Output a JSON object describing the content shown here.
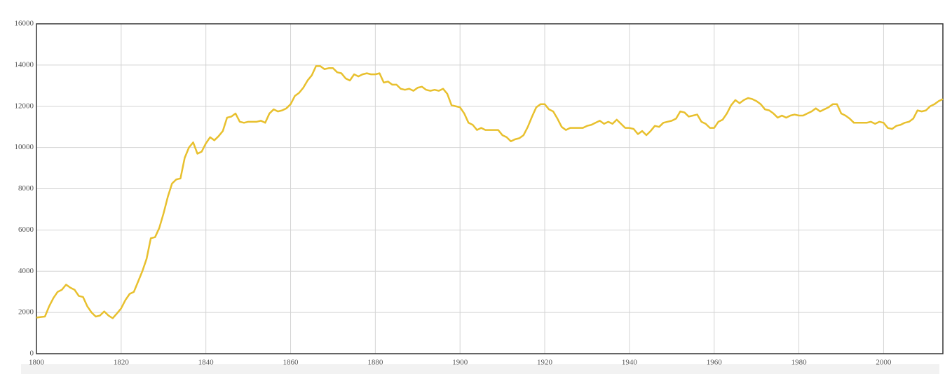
{
  "chart_data": {
    "type": "line",
    "color": "#e8c02e",
    "grid": true,
    "xlim": [
      1800,
      2014
    ],
    "ylim": [
      0,
      16000
    ],
    "xticks": [
      1800,
      1820,
      1840,
      1860,
      1880,
      1900,
      1920,
      1940,
      1960,
      1980,
      2000
    ],
    "yticks": [
      0,
      2000,
      4000,
      6000,
      8000,
      10000,
      12000,
      14000,
      16000
    ],
    "x": [
      1800,
      1801,
      1802,
      1803,
      1804,
      1805,
      1806,
      1807,
      1808,
      1809,
      1810,
      1811,
      1812,
      1813,
      1814,
      1815,
      1816,
      1817,
      1818,
      1819,
      1820,
      1821,
      1822,
      1823,
      1824,
      1825,
      1826,
      1827,
      1828,
      1829,
      1830,
      1831,
      1832,
      1833,
      1834,
      1835,
      1836,
      1837,
      1838,
      1839,
      1840,
      1841,
      1842,
      1843,
      1844,
      1845,
      1846,
      1847,
      1848,
      1849,
      1850,
      1851,
      1852,
      1853,
      1854,
      1855,
      1856,
      1857,
      1858,
      1859,
      1860,
      1861,
      1862,
      1863,
      1864,
      1865,
      1866,
      1867,
      1868,
      1869,
      1870,
      1871,
      1872,
      1873,
      1874,
      1875,
      1876,
      1877,
      1878,
      1879,
      1880,
      1881,
      1882,
      1883,
      1884,
      1885,
      1886,
      1887,
      1888,
      1889,
      1890,
      1891,
      1892,
      1893,
      1894,
      1895,
      1896,
      1897,
      1898,
      1899,
      1900,
      1901,
      1902,
      1903,
      1904,
      1905,
      1906,
      1907,
      1908,
      1909,
      1910,
      1911,
      1912,
      1913,
      1914,
      1915,
      1916,
      1917,
      1918,
      1919,
      1920,
      1921,
      1922,
      1923,
      1924,
      1925,
      1926,
      1927,
      1928,
      1929,
      1930,
      1931,
      1932,
      1933,
      1934,
      1935,
      1936,
      1937,
      1938,
      1939,
      1940,
      1941,
      1942,
      1943,
      1944,
      1945,
      1946,
      1947,
      1948,
      1949,
      1950,
      1951,
      1952,
      1953,
      1954,
      1955,
      1956,
      1957,
      1958,
      1959,
      1960,
      1961,
      1962,
      1963,
      1964,
      1965,
      1966,
      1967,
      1968,
      1969,
      1970,
      1971,
      1972,
      1973,
      1974,
      1975,
      1976,
      1977,
      1978,
      1979,
      1980,
      1981,
      1982,
      1983,
      1984,
      1985,
      1986,
      1987,
      1988,
      1989,
      1990,
      1991,
      1992,
      1993,
      1994,
      1995,
      1996,
      1997,
      1998,
      1999,
      2000,
      2001,
      2002,
      2003,
      2004,
      2005,
      2006,
      2007,
      2008,
      2009,
      2010,
      2011,
      2012,
      2013,
      2014
    ],
    "values": [
      1750,
      1780,
      1800,
      2300,
      2700,
      3000,
      3100,
      3350,
      3200,
      3100,
      2800,
      2750,
      2300,
      2000,
      1800,
      1850,
      2050,
      1850,
      1720,
      1950,
      2200,
      2600,
      2900,
      3000,
      3500,
      4000,
      4600,
      5600,
      5650,
      6100,
      6800,
      7600,
      8250,
      8450,
      8500,
      9500,
      10000,
      10250,
      9700,
      9800,
      10200,
      10500,
      10350,
      10550,
      10800,
      11450,
      11500,
      11650,
      11250,
      11200,
      11250,
      11250,
      11250,
      11300,
      11200,
      11650,
      11850,
      11750,
      11800,
      11900,
      12100,
      12500,
      12650,
      12900,
      13250,
      13500,
      13950,
      13950,
      13800,
      13850,
      13850,
      13650,
      13600,
      13350,
      13250,
      13550,
      13450,
      13550,
      13600,
      13550,
      13550,
      13600,
      13150,
      13200,
      13050,
      13050,
      12850,
      12800,
      12850,
      12750,
      12900,
      12950,
      12800,
      12750,
      12800,
      12750,
      12850,
      12600,
      12050,
      12000,
      11950,
      11650,
      11200,
      11100,
      10850,
      10950,
      10850,
      10850,
      10850,
      10850,
      10600,
      10500,
      10300,
      10400,
      10450,
      10600,
      11000,
      11500,
      11950,
      12100,
      12100,
      11850,
      11750,
      11400,
      11000,
      10850,
      10950,
      10950,
      10950,
      10950,
      11050,
      11100,
      11200,
      11300,
      11150,
      11250,
      11150,
      11350,
      11150,
      10950,
      10950,
      10900,
      10650,
      10800,
      10600,
      10800,
      11050,
      11000,
      11200,
      11250,
      11300,
      11400,
      11750,
      11700,
      11500,
      11550,
      11600,
      11250,
      11150,
      10950,
      10950,
      11250,
      11350,
      11650,
      12050,
      12300,
      12150,
      12300,
      12400,
      12350,
      12250,
      12100,
      11850,
      11800,
      11650,
      11450,
      11550,
      11450,
      11550,
      11600,
      11550,
      11550,
      11650,
      11750,
      11900,
      11750,
      11850,
      11950,
      12100,
      12100,
      11650,
      11550,
      11400,
      11200,
      11200,
      11200,
      11200,
      11250,
      11150,
      11250,
      11200,
      10950,
      10900,
      11050,
      11100,
      11200,
      11250,
      11400,
      11800,
      11750,
      11800,
      12000,
      12100,
      12250,
      12350
    ]
  }
}
